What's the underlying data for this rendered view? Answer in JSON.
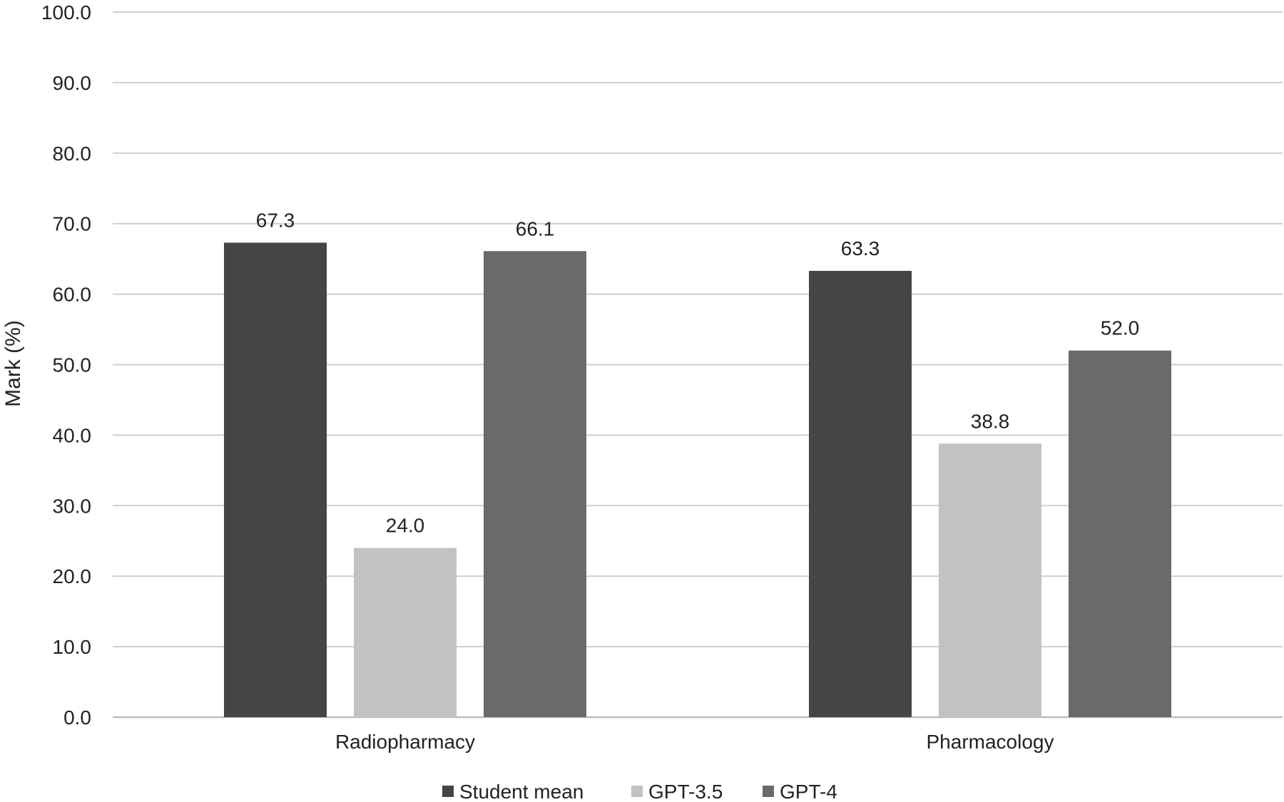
{
  "chart_data": {
    "type": "bar",
    "categories": [
      "Radiopharmacy",
      "Pharmacology"
    ],
    "series": [
      {
        "name": "Student mean",
        "values": [
          67.3,
          63.3
        ],
        "labels": [
          "67.3",
          "63.3"
        ],
        "color": "#454545"
      },
      {
        "name": "GPT-3.5",
        "values": [
          24.0,
          38.8
        ],
        "labels": [
          "24.0",
          "38.8"
        ],
        "color": "#c2c2c2"
      },
      {
        "name": "GPT-4",
        "values": [
          66.1,
          52.0
        ],
        "labels": [
          "66.1",
          "52.0"
        ],
        "color": "#6a6a6a"
      }
    ],
    "xlabel": "",
    "ylabel": "Mark (%)",
    "ylim": [
      0,
      100
    ],
    "yticks": [
      "0.0",
      "10.0",
      "20.0",
      "30.0",
      "40.0",
      "50.0",
      "60.0",
      "70.0",
      "80.0",
      "90.0",
      "100.0"
    ],
    "grid": true,
    "legend_position": "bottom"
  }
}
